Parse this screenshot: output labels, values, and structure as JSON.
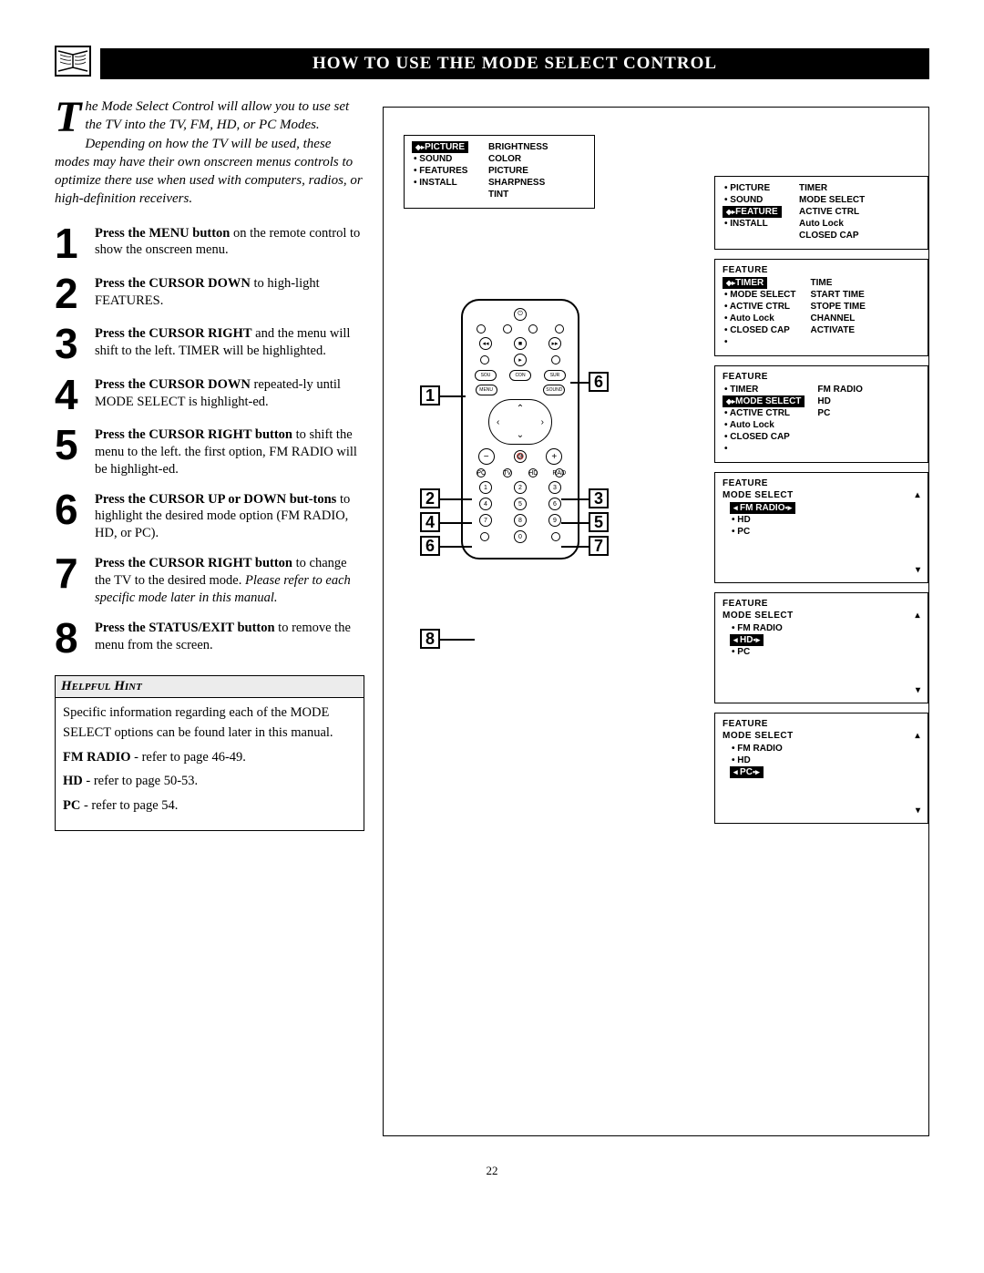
{
  "title": "HOW TO USE THE MODE SELECT CONTROL",
  "intro_dropcap": "T",
  "intro": "he Mode Select Control will allow you to use set the TV into the TV, FM, HD, or PC Modes. Depending on how the TV will be used, these modes may have their own onscreen menus controls to optimize there use when used with computers, radios, or high-definition receivers.",
  "steps": [
    {
      "n": "1",
      "bold": "Press the MENU button",
      "rest": " on the remote control to show the onscreen menu."
    },
    {
      "n": "2",
      "bold": "Press the CURSOR DOWN",
      "rest": " to high-light FEATURES."
    },
    {
      "n": "3",
      "bold": "Press the CURSOR RIGHT",
      "rest": " and the menu will shift to the left. TIMER will be highlighted."
    },
    {
      "n": "4",
      "bold": "Press the CURSOR DOWN",
      "rest": " repeated-ly until MODE SELECT is highlight-ed."
    },
    {
      "n": "5",
      "bold": "Press the CURSOR RIGHT button",
      "rest": " to shift the menu to the left. the first option, FM RADIO will be highlight-ed."
    },
    {
      "n": "6",
      "bold": "Press the CURSOR UP or DOWN but-tons",
      "rest": " to highlight the desired mode option (FM RADIO, HD, or PC)."
    },
    {
      "n": "7",
      "bold": "Press the CURSOR RIGHT button",
      "rest": " to change the TV to the desired mode. ",
      "italic": "Please refer to each specific mode later in this manual."
    },
    {
      "n": "8",
      "bold": "Press the STATUS/EXIT button",
      "rest": " to remove the menu from the screen."
    }
  ],
  "hint_title": "Helpful Hint",
  "hint_intro": "Specific information regarding each of the MODE SELECT options can be found later in this manual.",
  "hint_lines": [
    {
      "b": "FM RADIO",
      "t": " - refer to page 46-49."
    },
    {
      "b": "HD",
      "t": " - refer to page 50-53."
    },
    {
      "b": "PC",
      "t": " - refer to page 54."
    }
  ],
  "page_num": "22",
  "menu_box1": {
    "left": [
      {
        "t": "PICTURE",
        "sel": true
      },
      {
        "t": "SOUND"
      },
      {
        "t": "FEATURES"
      },
      {
        "t": "INSTALL"
      }
    ],
    "right": [
      "BRIGHTNESS",
      "COLOR",
      "PICTURE",
      "SHARPNESS",
      "TINT"
    ]
  },
  "menu_top_right": {
    "left": [
      {
        "t": "PICTURE"
      },
      {
        "t": "SOUND"
      },
      {
        "t": "FEATURE",
        "sel": true
      },
      {
        "t": "INSTALL"
      }
    ],
    "right": [
      "TIMER",
      "MODE SELECT",
      "ACTIVE CTRL",
      "Auto Lock",
      "CLOSED CAP"
    ]
  },
  "menu_feature_timer": {
    "hdr": "FEATURE",
    "left": [
      {
        "t": "TIMER",
        "sel": true
      },
      {
        "t": "MODE SELECT"
      },
      {
        "t": "ACTIVE CTRL"
      },
      {
        "t": "Auto Lock"
      },
      {
        "t": "CLOSED CAP"
      },
      {
        "t": ""
      }
    ],
    "right": [
      "TIME",
      "START TIME",
      "STOPE TIME",
      "CHANNEL",
      "ACTIVATE"
    ]
  },
  "menu_feature_mode": {
    "hdr": "FEATURE",
    "left": [
      {
        "t": "TIMER"
      },
      {
        "t": "MODE SELECT",
        "sel": true
      },
      {
        "t": "ACTIVE CTRL"
      },
      {
        "t": "Auto Lock"
      },
      {
        "t": "CLOSED CAP"
      },
      {
        "t": ""
      }
    ],
    "right": [
      "FM RADIO",
      "HD",
      "PC"
    ]
  },
  "menu_ms_fm": {
    "hdr": "FEATURE",
    "sub": "MODE SELECT",
    "items": [
      {
        "t": "FM RADIO",
        "sel": true,
        "dot": true
      },
      {
        "t": "HD"
      },
      {
        "t": "PC"
      }
    ]
  },
  "menu_ms_hd": {
    "hdr": "FEATURE",
    "sub": "MODE SELECT",
    "items": [
      {
        "t": "FM RADIO"
      },
      {
        "t": "HD",
        "sel": true,
        "dot": true
      },
      {
        "t": "PC"
      }
    ]
  },
  "menu_ms_pc": {
    "hdr": "FEATURE",
    "sub": "MODE SELECT",
    "items": [
      {
        "t": "FM RADIO"
      },
      {
        "t": "HD"
      },
      {
        "t": "PC",
        "sel": true,
        "dot": true
      }
    ]
  },
  "remote_labels": {
    "top_row": [
      "PIP",
      "POSITION",
      "CC"
    ],
    "r2": [
      "PROG.",
      "LIST",
      "CLOCK"
    ],
    "side": [
      "TV",
      "DVD",
      "ACC"
    ],
    "r3": [
      "SLEEP",
      "TV/DIV",
      "SOURCE"
    ],
    "r4": [
      "SOUND",
      "CONTROL",
      "SURR."
    ],
    "r5": [
      "MENU",
      "",
      "SOUND"
    ],
    "mode": [
      "PC",
      "TV",
      "HD",
      "RADIO"
    ],
    "status": "STATUS/EXIT",
    "surf": "SURF"
  },
  "callouts_left": [
    "1",
    "2",
    "4",
    "6",
    "8"
  ],
  "callouts_right": [
    "6",
    "3",
    "5",
    "7"
  ],
  "colors": {
    "black": "#000000",
    "white": "#ffffff",
    "grey": "#ececec"
  }
}
